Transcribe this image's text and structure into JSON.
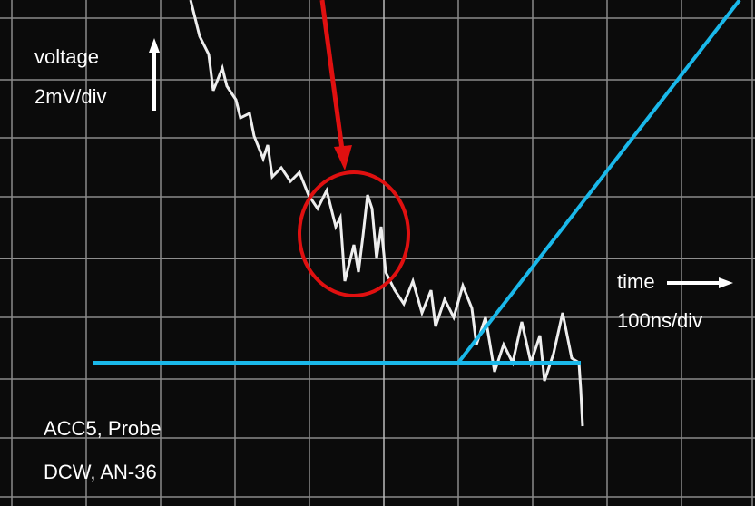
{
  "y_axis": {
    "quantity": "voltage",
    "scale": "2mV/div"
  },
  "x_axis": {
    "quantity": "time",
    "scale": "100ns/div"
  },
  "caption": [
    "ACC5, Probe",
    "DCW, AN-36"
  ]
}
